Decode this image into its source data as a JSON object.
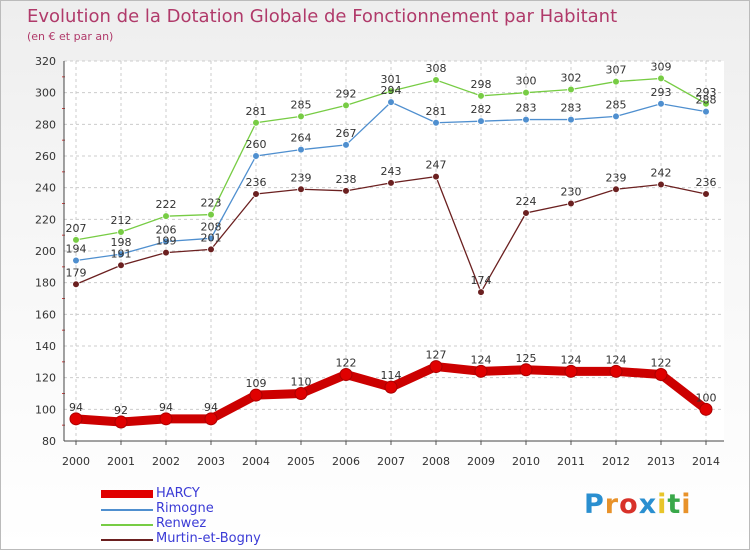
{
  "title": "Evolution de la Dotation Globale de Fonctionnement par Habitant",
  "subtitle": "(en € et par an)",
  "logo": {
    "text": "Proxiti",
    "letter_colors": [
      "#2a8fd0",
      "#e8922a",
      "#d8322a",
      "#2a8fd0",
      "#e8c52a",
      "#3aa84a",
      "#e8922a"
    ]
  },
  "chart_data": {
    "type": "line",
    "title": "Evolution de la Dotation Globale de Fonctionnement par Habitant",
    "subtitle": "(en € et par an)",
    "xlabel": "",
    "ylabel": "",
    "ylim": [
      80,
      320
    ],
    "yticks": [
      80,
      100,
      120,
      140,
      160,
      180,
      200,
      220,
      240,
      260,
      280,
      300,
      320
    ],
    "grid": true,
    "legend_position": "bottom-left",
    "categories": [
      "2000",
      "2001",
      "2002",
      "2003",
      "2004",
      "2005",
      "2006",
      "2007",
      "2008",
      "2009",
      "2010",
      "2011",
      "2012",
      "2013",
      "2014"
    ],
    "series": [
      {
        "name": "HARCY",
        "color": "#e00000",
        "values": [
          94,
          92,
          94,
          94,
          109,
          110,
          122,
          114,
          127,
          124,
          125,
          124,
          124,
          122,
          100
        ]
      },
      {
        "name": "Rimogne",
        "color": "#4f8fcf",
        "values": [
          194,
          198,
          206,
          208,
          260,
          264,
          267,
          294,
          281,
          282,
          283,
          283,
          285,
          293,
          288
        ]
      },
      {
        "name": "Renwez",
        "color": "#77cc44",
        "values": [
          207,
          212,
          222,
          223,
          281,
          285,
          292,
          301,
          308,
          298,
          300,
          302,
          307,
          309,
          293
        ]
      },
      {
        "name": "Murtin-et-Bogny",
        "color": "#6b2020",
        "values": [
          179,
          191,
          199,
          201,
          236,
          239,
          238,
          243,
          247,
          174,
          224,
          230,
          239,
          242,
          236
        ]
      }
    ]
  }
}
